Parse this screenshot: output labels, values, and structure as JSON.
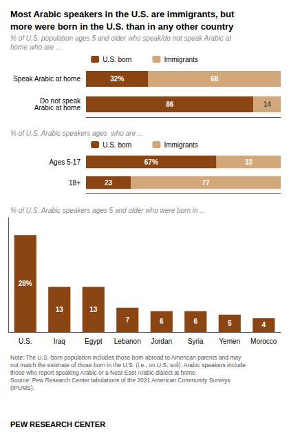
{
  "chart_data": [
    {
      "type": "bar",
      "orientation": "horizontal",
      "stacked": true,
      "title": "Most Arabic speakers in the U.S. are immigrants, but\nmore were born in the U.S. than in any other country",
      "subtitle": "% of U.S. population ages 5 and older who speak/do not speak Arabic at\nhome who are ...",
      "categories": [
        "Speak Arabic at home",
        "Do not speak\nArabic at home"
      ],
      "series": [
        {
          "name": "U.S. born",
          "color": "#8B4513",
          "values": [
            32,
            86
          ],
          "value_labels": [
            "32%",
            "86"
          ]
        },
        {
          "name": "Immigrants",
          "color": "#D2A87A",
          "values": [
            68,
            14
          ],
          "value_labels": [
            "68",
            "14"
          ]
        }
      ],
      "xlim": [
        0,
        100
      ],
      "legend": "top",
      "data_labels": true,
      "tick_labels": "y",
      "grid": false
    },
    {
      "type": "bar",
      "orientation": "horizontal",
      "stacked": true,
      "subtitle": "% of U.S. Arabic speakers ages  who are ...",
      "categories": [
        "Ages 5-17",
        "18+"
      ],
      "series": [
        {
          "name": "U.S. born",
          "color": "#8B4513",
          "values": [
            67,
            23
          ],
          "value_labels": [
            "67%",
            "23"
          ]
        },
        {
          "name": "Immigrants",
          "color": "#D2A87A",
          "values": [
            33,
            77
          ],
          "value_labels": [
            "33",
            "77"
          ]
        }
      ],
      "xlim": [
        0,
        100
      ],
      "legend": "top",
      "data_labels": true,
      "tick_labels": "y",
      "grid": false
    },
    {
      "type": "bar",
      "subtitle": "% of U.S. Arabic speakers ages 5 and older who were born in ...",
      "categories": [
        "U.S.",
        "Iraq",
        "Egypt",
        "Lebanon",
        "Jordan",
        "Syria",
        "Yemen",
        "Morocco"
      ],
      "values": [
        28,
        13,
        13,
        7,
        6,
        6,
        5,
        4
      ],
      "value_labels": [
        "28%",
        "13",
        "13",
        "7",
        "6",
        "6",
        "5",
        "4"
      ],
      "color": "#8B4513",
      "ylim": [
        0,
        33
      ],
      "data_labels": true,
      "tick_labels": "x",
      "grid": false,
      "annotations": [
        "Note: The U.S.-born population includes those born abroad to American parents and may\nnot match the estimate of those born in the U.S. (i.e., on U.S. soil). Arabic speakers include\nthose who report speaking Arabic or a Near East Arabic dialect at home.\nSource: Pew Research Center tabulations of the 2021 American Community Surveys\n(IPUMS).",
        "PEW RESEARCH CENTER"
      ]
    }
  ]
}
